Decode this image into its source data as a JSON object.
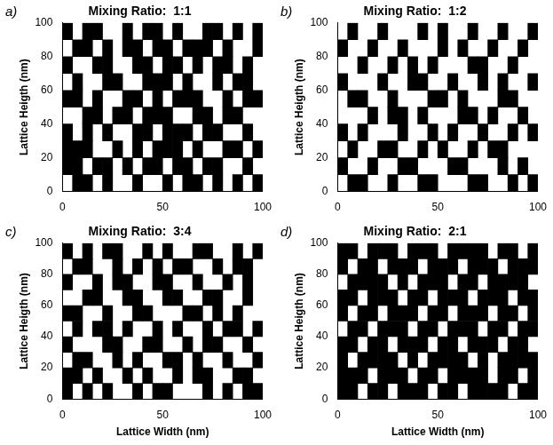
{
  "chart_data": [
    {
      "type": "heatmap",
      "panel_label": "a)",
      "title": "Mixing Ratio:  1:1",
      "y_label": "Lattice Heigth (nm)",
      "xlim": [
        0,
        100
      ],
      "ylim": [
        0,
        100
      ],
      "xticks": [
        0,
        50,
        100
      ],
      "yticks": [
        0,
        20,
        40,
        60,
        80,
        100
      ],
      "grid": false,
      "color": "#000000",
      "cells": [
        [
          1,
          0,
          1,
          1,
          0,
          0,
          1,
          0,
          1,
          1,
          0,
          1,
          0,
          0,
          1,
          1,
          0,
          1,
          0,
          1
        ],
        [
          0,
          1,
          1,
          0,
          1,
          0,
          1,
          1,
          0,
          1,
          1,
          0,
          1,
          1,
          1,
          0,
          1,
          0,
          0,
          1
        ],
        [
          1,
          0,
          0,
          1,
          1,
          0,
          0,
          1,
          1,
          0,
          1,
          1,
          0,
          1,
          0,
          1,
          1,
          0,
          1,
          0
        ],
        [
          0,
          1,
          0,
          0,
          1,
          1,
          0,
          0,
          1,
          1,
          1,
          0,
          1,
          0,
          0,
          1,
          0,
          1,
          1,
          0
        ],
        [
          1,
          1,
          0,
          1,
          0,
          0,
          1,
          1,
          0,
          1,
          0,
          1,
          1,
          1,
          0,
          0,
          1,
          0,
          1,
          1
        ],
        [
          0,
          0,
          1,
          1,
          0,
          1,
          1,
          0,
          1,
          1,
          1,
          0,
          0,
          1,
          1,
          0,
          1,
          1,
          0,
          0
        ],
        [
          1,
          0,
          1,
          0,
          1,
          0,
          0,
          1,
          1,
          0,
          1,
          1,
          1,
          0,
          1,
          1,
          0,
          0,
          1,
          0
        ],
        [
          1,
          1,
          1,
          0,
          0,
          1,
          0,
          1,
          0,
          1,
          1,
          1,
          0,
          1,
          0,
          0,
          1,
          1,
          0,
          1
        ],
        [
          1,
          1,
          0,
          1,
          1,
          0,
          1,
          0,
          1,
          1,
          0,
          1,
          1,
          0,
          1,
          1,
          0,
          0,
          1,
          0
        ],
        [
          0,
          1,
          1,
          0,
          1,
          0,
          0,
          1,
          0,
          0,
          1,
          0,
          1,
          1,
          0,
          1,
          0,
          1,
          0,
          1
        ]
      ]
    },
    {
      "type": "heatmap",
      "panel_label": "b)",
      "title": "Mixing Ratio:  1:2",
      "y_label": "Lattice Heigth (nm)",
      "xlim": [
        0,
        100
      ],
      "ylim": [
        0,
        100
      ],
      "xticks": [
        0,
        50,
        100
      ],
      "yticks": [
        0,
        20,
        40,
        60,
        80,
        100
      ],
      "grid": false,
      "color": "#000000",
      "cells": [
        [
          0,
          1,
          0,
          0,
          1,
          0,
          0,
          0,
          1,
          0,
          1,
          0,
          0,
          1,
          0,
          0,
          1,
          0,
          0,
          1
        ],
        [
          1,
          0,
          0,
          1,
          0,
          0,
          1,
          0,
          0,
          0,
          1,
          0,
          1,
          0,
          0,
          1,
          0,
          0,
          1,
          0
        ],
        [
          0,
          0,
          1,
          0,
          0,
          1,
          0,
          1,
          0,
          1,
          0,
          0,
          0,
          1,
          1,
          0,
          0,
          1,
          0,
          0
        ],
        [
          1,
          0,
          0,
          0,
          1,
          0,
          0,
          1,
          1,
          0,
          0,
          1,
          0,
          0,
          1,
          0,
          1,
          0,
          0,
          1
        ],
        [
          0,
          1,
          1,
          0,
          0,
          1,
          0,
          0,
          0,
          1,
          1,
          0,
          1,
          0,
          0,
          0,
          1,
          1,
          0,
          0
        ],
        [
          0,
          0,
          0,
          1,
          0,
          1,
          1,
          0,
          1,
          0,
          0,
          0,
          1,
          1,
          0,
          1,
          0,
          0,
          1,
          0
        ],
        [
          1,
          0,
          1,
          0,
          0,
          0,
          1,
          0,
          0,
          1,
          0,
          1,
          0,
          0,
          1,
          0,
          0,
          1,
          0,
          1
        ],
        [
          0,
          1,
          0,
          0,
          1,
          1,
          0,
          0,
          1,
          0,
          1,
          0,
          0,
          1,
          0,
          1,
          1,
          0,
          0,
          0
        ],
        [
          1,
          0,
          0,
          1,
          0,
          0,
          1,
          1,
          0,
          0,
          0,
          1,
          1,
          0,
          0,
          0,
          1,
          0,
          1,
          0
        ],
        [
          0,
          1,
          1,
          0,
          0,
          1,
          0,
          0,
          1,
          1,
          0,
          0,
          0,
          1,
          1,
          0,
          0,
          1,
          0,
          1
        ]
      ]
    },
    {
      "type": "heatmap",
      "panel_label": "c)",
      "title": "Mixing Ratio:  3:4",
      "x_label": "Lattice Width (nm)",
      "y_label": "Lattice Heigth (nm)",
      "xlim": [
        0,
        100
      ],
      "ylim": [
        0,
        100
      ],
      "xticks": [
        0,
        50,
        100
      ],
      "yticks": [
        0,
        20,
        40,
        60,
        80,
        100
      ],
      "grid": false,
      "color": "#000000",
      "cells": [
        [
          1,
          0,
          1,
          0,
          1,
          1,
          0,
          0,
          1,
          0,
          1,
          0,
          0,
          1,
          1,
          0,
          0,
          1,
          0,
          1
        ],
        [
          0,
          1,
          1,
          0,
          0,
          1,
          0,
          1,
          0,
          1,
          0,
          1,
          1,
          0,
          0,
          1,
          0,
          1,
          1,
          0
        ],
        [
          1,
          0,
          0,
          1,
          0,
          1,
          1,
          0,
          0,
          1,
          1,
          0,
          0,
          1,
          0,
          0,
          1,
          0,
          1,
          0
        ],
        [
          0,
          0,
          1,
          1,
          0,
          0,
          1,
          1,
          0,
          0,
          1,
          1,
          0,
          0,
          1,
          1,
          0,
          0,
          1,
          0
        ],
        [
          1,
          1,
          0,
          0,
          1,
          0,
          0,
          1,
          1,
          0,
          0,
          0,
          1,
          1,
          0,
          1,
          0,
          1,
          0,
          0
        ],
        [
          0,
          1,
          0,
          1,
          1,
          0,
          1,
          0,
          0,
          1,
          0,
          1,
          0,
          0,
          1,
          0,
          1,
          1,
          0,
          1
        ],
        [
          1,
          0,
          0,
          0,
          1,
          1,
          0,
          0,
          1,
          1,
          0,
          0,
          1,
          0,
          1,
          1,
          0,
          0,
          1,
          0
        ],
        [
          0,
          1,
          1,
          0,
          0,
          1,
          0,
          1,
          0,
          0,
          1,
          1,
          0,
          1,
          0,
          0,
          1,
          0,
          0,
          1
        ],
        [
          1,
          1,
          0,
          1,
          0,
          0,
          1,
          0,
          1,
          0,
          0,
          1,
          0,
          1,
          1,
          0,
          0,
          1,
          1,
          0
        ],
        [
          1,
          0,
          1,
          0,
          1,
          0,
          0,
          1,
          0,
          1,
          1,
          0,
          0,
          0,
          1,
          0,
          1,
          0,
          1,
          1
        ]
      ]
    },
    {
      "type": "heatmap",
      "panel_label": "d)",
      "title": "Mixing Ratio:  2:1",
      "x_label": "Lattice Width (nm)",
      "y_label": "Lattice Heigth (nm)",
      "xlim": [
        0,
        100
      ],
      "ylim": [
        0,
        100
      ],
      "xticks": [
        0,
        50,
        100
      ],
      "yticks": [
        0,
        20,
        40,
        60,
        80,
        100
      ],
      "grid": false,
      "color": "#000000",
      "cells": [
        [
          1,
          1,
          0,
          1,
          1,
          1,
          0,
          1,
          1,
          1,
          0,
          1,
          1,
          1,
          1,
          0,
          1,
          1,
          0,
          1
        ],
        [
          1,
          0,
          1,
          1,
          0,
          1,
          1,
          1,
          0,
          1,
          1,
          1,
          0,
          1,
          1,
          1,
          0,
          1,
          1,
          1
        ],
        [
          0,
          1,
          1,
          1,
          1,
          0,
          1,
          0,
          1,
          1,
          1,
          0,
          1,
          1,
          0,
          1,
          1,
          1,
          1,
          0
        ],
        [
          1,
          1,
          0,
          1,
          1,
          1,
          0,
          1,
          1,
          0,
          1,
          1,
          1,
          0,
          1,
          1,
          1,
          0,
          1,
          1
        ],
        [
          1,
          0,
          1,
          1,
          0,
          1,
          1,
          1,
          0,
          1,
          1,
          0,
          1,
          1,
          1,
          0,
          1,
          1,
          0,
          1
        ],
        [
          0,
          1,
          1,
          0,
          1,
          1,
          1,
          0,
          1,
          1,
          0,
          1,
          1,
          1,
          0,
          1,
          1,
          0,
          1,
          1
        ],
        [
          1,
          1,
          0,
          1,
          1,
          0,
          1,
          1,
          1,
          0,
          1,
          1,
          0,
          1,
          1,
          1,
          0,
          1,
          1,
          0
        ],
        [
          1,
          0,
          1,
          1,
          1,
          1,
          0,
          1,
          0,
          1,
          1,
          1,
          1,
          0,
          1,
          0,
          1,
          1,
          1,
          1
        ],
        [
          1,
          1,
          1,
          0,
          1,
          1,
          1,
          0,
          1,
          1,
          0,
          1,
          1,
          1,
          1,
          0,
          1,
          1,
          0,
          1
        ],
        [
          1,
          1,
          0,
          1,
          1,
          0,
          1,
          1,
          1,
          0,
          1,
          1,
          0,
          1,
          1,
          1,
          1,
          0,
          1,
          1
        ]
      ]
    }
  ]
}
